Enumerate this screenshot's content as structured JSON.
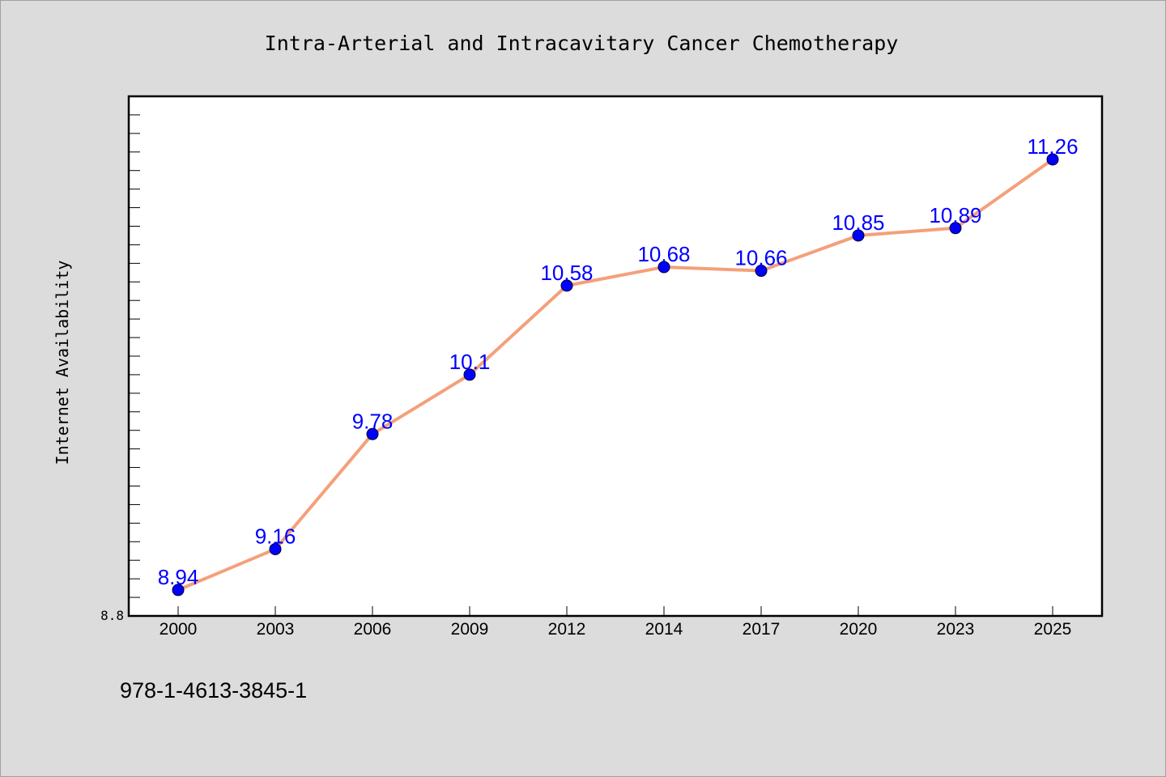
{
  "chart_data": {
    "type": "line",
    "title": "Intra-Arterial and Intracavitary Cancer Chemotherapy",
    "xlabel": "",
    "ylabel": "Internet Availability",
    "categories": [
      "2000",
      "2003",
      "2006",
      "2009",
      "2012",
      "2014",
      "2017",
      "2020",
      "2023",
      "2025"
    ],
    "series": [
      {
        "values": [
          8.94,
          9.16,
          9.78,
          10.1,
          10.58,
          10.68,
          10.66,
          10.85,
          10.89,
          11.26
        ],
        "data_labels": [
          "8.94",
          "9.16",
          "9.78",
          "10.1",
          "10.58",
          "10.68",
          "10.66",
          "10.85",
          "10.89",
          "11.26"
        ]
      }
    ],
    "ylim": [
      8.8,
      11.6
    ],
    "y_tick_labels": [
      "8.8"
    ],
    "grid": false,
    "legend": "none",
    "colors": {
      "line": "#f4a07a",
      "marker": "#0000ff",
      "data_label": "#0000ff",
      "plot_background": "#ffffff",
      "page_background": "#dcdcdc"
    }
  },
  "footer": {
    "isbn": "978-1-4613-3845-1"
  }
}
